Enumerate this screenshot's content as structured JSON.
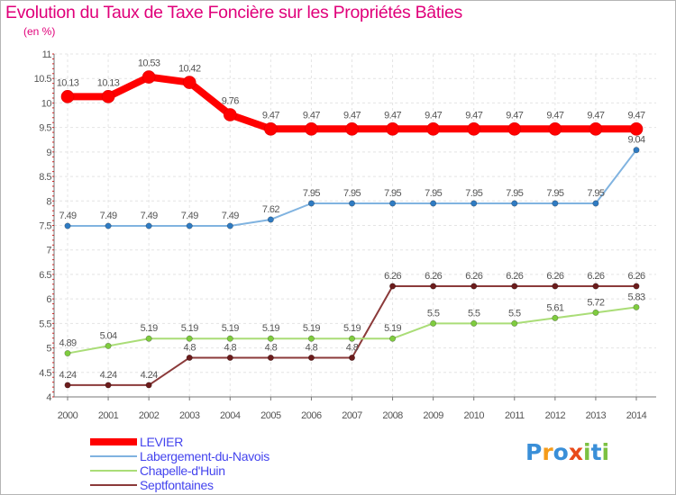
{
  "chart_data": {
    "type": "line",
    "title": "Evolution du Taux de Taxe Foncière sur les Propriétés Bâties",
    "subtitle": "(en %)",
    "xlabel": "",
    "ylabel": "",
    "categories": [
      "2000",
      "2001",
      "2002",
      "2003",
      "2004",
      "2005",
      "2006",
      "2007",
      "2008",
      "2009",
      "2010",
      "2011",
      "2012",
      "2013",
      "2014"
    ],
    "ylim": [
      4,
      11
    ],
    "yticks": [
      "4",
      "4.5",
      "5",
      "5.5",
      "6",
      "6.5",
      "7",
      "7.5",
      "8",
      "8.5",
      "9",
      "9.5",
      "10",
      "10.5",
      "11"
    ],
    "grid": true,
    "series": [
      {
        "name": "LEVIER",
        "color": "#ff0000",
        "width": 8,
        "marker": 7,
        "values": [
          10.13,
          10.13,
          10.53,
          10.42,
          9.76,
          9.47,
          9.47,
          9.47,
          9.47,
          9.47,
          9.47,
          9.47,
          9.47,
          9.47,
          9.47
        ],
        "labels": [
          "10.13",
          "10.13",
          "10.53",
          "10.42",
          "9.76",
          "9.47",
          "9.47",
          "9.47",
          "9.47",
          "9.47",
          "9.47",
          "9.47",
          "9.47",
          "9.47",
          "9.47"
        ]
      },
      {
        "name": "Labergement-du-Navois",
        "color": "#80b3e0",
        "marker_color": "#2f7bc2",
        "width": 2,
        "marker": 3.2,
        "values": [
          7.49,
          7.49,
          7.49,
          7.49,
          7.49,
          7.62,
          7.95,
          7.95,
          7.95,
          7.95,
          7.95,
          7.95,
          7.95,
          7.95,
          9.04
        ],
        "labels": [
          "7.49",
          "7.49",
          "7.49",
          "7.49",
          "7.49",
          "7.62",
          "7.95",
          "7.95",
          "7.95",
          "7.95",
          "7.95",
          "7.95",
          "7.95",
          "7.95",
          "9.04"
        ]
      },
      {
        "name": "Chapelle-d'Huin",
        "color": "#aadd77",
        "marker_color": "#7fcc3f",
        "width": 2,
        "marker": 3.2,
        "values": [
          4.89,
          5.04,
          5.19,
          5.19,
          5.19,
          5.19,
          5.19,
          5.19,
          5.19,
          5.5,
          5.5,
          5.5,
          5.61,
          5.72,
          5.83
        ],
        "labels": [
          "4.89",
          "5.04",
          "5.19",
          "5.19",
          "5.19",
          "5.19",
          "5.19",
          "5.19",
          "5.19",
          "5.5",
          "5.5",
          "5.5",
          "5.61",
          "5.72",
          "5.83"
        ]
      },
      {
        "name": "Septfontaines",
        "color": "#8b3a3a",
        "marker_color": "#6b1c1c",
        "width": 2,
        "marker": 3.2,
        "values": [
          4.24,
          4.24,
          4.24,
          4.8,
          4.8,
          4.8,
          4.8,
          4.8,
          6.26,
          6.26,
          6.26,
          6.26,
          6.26,
          6.26,
          6.26
        ],
        "labels": [
          "4.24",
          "4.24",
          "4.24",
          "4.8",
          "4.8",
          "4.8",
          "4.8",
          "4.8",
          "6.26",
          "6.26",
          "6.26",
          "6.26",
          "6.26",
          "6.26",
          "6.26"
        ]
      }
    ]
  },
  "legend": {
    "items": [
      {
        "label": "LEVIER"
      },
      {
        "label": "Labergement-du-Navois"
      },
      {
        "label": "Chapelle-d'Huin"
      },
      {
        "label": "Septfontaines"
      }
    ]
  },
  "logo": {
    "letters": [
      "P",
      "r",
      "o",
      "x",
      "i",
      "t",
      "i"
    ],
    "colors": [
      "#3a8fd8",
      "#f59b1a",
      "#3a8fd8",
      "#e84a1a",
      "#7cc142",
      "#3a8fd8",
      "#7cc142"
    ]
  }
}
